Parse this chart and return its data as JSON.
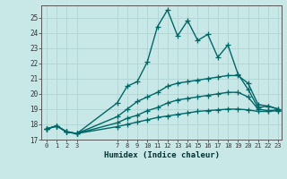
{
  "title": "",
  "xlabel": "Humidex (Indice chaleur)",
  "ylabel": "",
  "background_color": "#c8e8e8",
  "grid_color": "#b0d4d4",
  "line_color": "#006666",
  "ylim": [
    17,
    25.8
  ],
  "xlim": [
    -0.5,
    23.3
  ],
  "yticks": [
    17,
    18,
    19,
    20,
    21,
    22,
    23,
    24,
    25
  ],
  "xticks": [
    0,
    1,
    2,
    3,
    7,
    8,
    9,
    10,
    11,
    12,
    13,
    14,
    15,
    16,
    17,
    18,
    19,
    20,
    21,
    22,
    23
  ],
  "lines": [
    {
      "x": [
        0,
        1,
        2,
        3,
        7,
        8,
        9,
        10,
        11,
        12,
        13,
        14,
        15,
        16,
        17,
        18,
        19,
        20,
        21,
        22,
        23
      ],
      "y": [
        17.7,
        17.9,
        17.5,
        17.4,
        19.4,
        20.5,
        20.8,
        22.1,
        24.4,
        25.5,
        23.8,
        24.8,
        23.5,
        23.9,
        22.4,
        23.2,
        21.3,
        20.3,
        19.1,
        19.2,
        19.0
      ]
    },
    {
      "x": [
        0,
        1,
        2,
        3,
        7,
        8,
        9,
        10,
        11,
        12,
        13,
        14,
        15,
        16,
        17,
        18,
        19,
        20,
        21,
        22,
        23
      ],
      "y": [
        17.7,
        17.9,
        17.5,
        17.4,
        18.5,
        19.0,
        19.5,
        19.8,
        20.1,
        20.5,
        20.7,
        20.8,
        20.9,
        21.0,
        21.1,
        21.2,
        21.2,
        20.7,
        19.3,
        19.2,
        19.0
      ]
    },
    {
      "x": [
        0,
        1,
        2,
        3,
        7,
        8,
        9,
        10,
        11,
        12,
        13,
        14,
        15,
        16,
        17,
        18,
        19,
        20,
        21,
        22,
        23
      ],
      "y": [
        17.7,
        17.9,
        17.5,
        17.4,
        18.1,
        18.4,
        18.6,
        18.9,
        19.1,
        19.4,
        19.6,
        19.7,
        19.8,
        19.9,
        20.0,
        20.1,
        20.1,
        19.8,
        19.0,
        18.9,
        18.95
      ]
    },
    {
      "x": [
        0,
        1,
        2,
        3,
        7,
        8,
        9,
        10,
        11,
        12,
        13,
        14,
        15,
        16,
        17,
        18,
        19,
        20,
        21,
        22,
        23
      ],
      "y": [
        17.7,
        17.9,
        17.5,
        17.4,
        17.85,
        18.0,
        18.15,
        18.3,
        18.45,
        18.55,
        18.65,
        18.75,
        18.85,
        18.9,
        18.95,
        19.0,
        19.0,
        18.95,
        18.85,
        18.85,
        18.9
      ]
    }
  ],
  "marker": "+",
  "markersize": 4,
  "linewidth": 1.0
}
